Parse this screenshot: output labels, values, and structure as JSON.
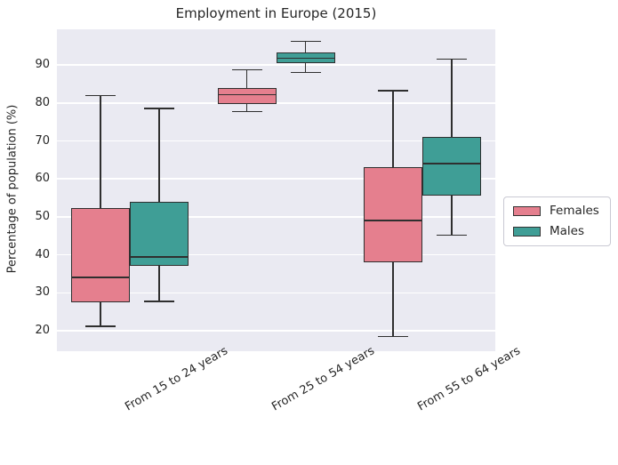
{
  "chart_data": {
    "type": "boxplot",
    "title": "Employment in Europe (2015)",
    "ylabel": "Percentage of population (%)",
    "xlabel": "",
    "categories": [
      "From 15 to 24 years",
      "From 25 to 54 years",
      "From 55 to 64 years"
    ],
    "series": [
      {
        "name": "Females",
        "color": "#e57f8e",
        "boxes": [
          {
            "whislo": 21.2,
            "q1": 27.5,
            "med": 34.0,
            "q3": 52.3,
            "whishi": 82.0
          },
          {
            "whislo": 77.7,
            "q1": 79.8,
            "med": 82.2,
            "q3": 84.0,
            "whishi": 88.8
          },
          {
            "whislo": 18.5,
            "q1": 38.0,
            "med": 49.0,
            "q3": 63.0,
            "whishi": 83.2
          }
        ]
      },
      {
        "name": "Males",
        "color": "#3f9e96",
        "boxes": [
          {
            "whislo": 27.7,
            "q1": 37.0,
            "med": 39.4,
            "q3": 54.0,
            "whishi": 78.5
          },
          {
            "whislo": 88.0,
            "q1": 90.6,
            "med": 91.8,
            "q3": 93.3,
            "whishi": 96.2
          },
          {
            "whislo": 45.2,
            "q1": 55.7,
            "med": 64.0,
            "q3": 71.0,
            "whishi": 91.5
          }
        ]
      }
    ],
    "yticks": [
      20,
      30,
      40,
      50,
      60,
      70,
      80,
      90
    ],
    "ylim": [
      14.6,
      99.4
    ],
    "grid": true,
    "legend": {
      "entries": [
        "Females",
        "Males"
      ],
      "position": "right-outside"
    },
    "colors": {
      "plot_background": "#eaeaf2",
      "gridline": "#ffffff",
      "box_edge": "#2f2f2f",
      "text": "#262626",
      "females": "#e57f8e",
      "males": "#3f9e96"
    }
  }
}
